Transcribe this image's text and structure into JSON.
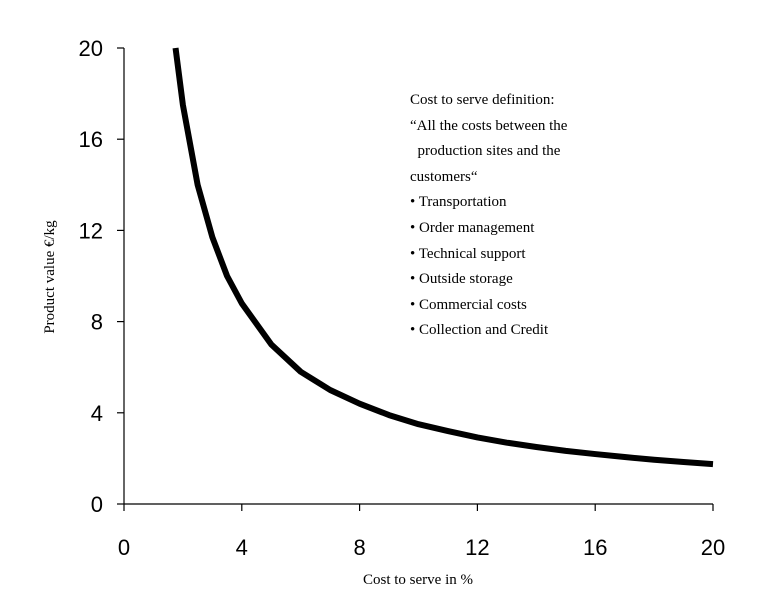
{
  "chart_data": {
    "type": "line",
    "title": "",
    "xlabel": "Cost to serve in %",
    "ylabel": "Product value €/kg",
    "xlim": [
      0,
      20
    ],
    "ylim": [
      0,
      20
    ],
    "xticks": [
      "0",
      "4",
      "8",
      "12",
      "16",
      "20"
    ],
    "yticks": [
      "0",
      "4",
      "8",
      "12",
      "16",
      "20"
    ],
    "grid": false,
    "legend": "none",
    "series": [
      {
        "color": "#000000",
        "x": [
          1.75,
          2,
          2.5,
          3,
          3.5,
          4,
          5,
          6,
          7,
          8,
          9,
          10,
          11,
          12,
          13,
          14,
          15,
          16,
          17,
          18,
          19,
          20
        ],
        "y": [
          20.0,
          17.5,
          14.0,
          11.7,
          10.0,
          8.8,
          7.0,
          5.8,
          5.0,
          4.4,
          3.9,
          3.5,
          3.2,
          2.92,
          2.69,
          2.5,
          2.33,
          2.19,
          2.06,
          1.94,
          1.84,
          1.75
        ]
      }
    ],
    "annotation": {
      "lines": [
        "Cost to serve definition:",
        "“All the costs between the",
        "  production sites and the",
        "customers“",
        "• Transportation",
        "• Order management",
        "• Technical support",
        "• Outside storage",
        "• Commercial costs",
        "• Collection and Credit"
      ]
    }
  }
}
